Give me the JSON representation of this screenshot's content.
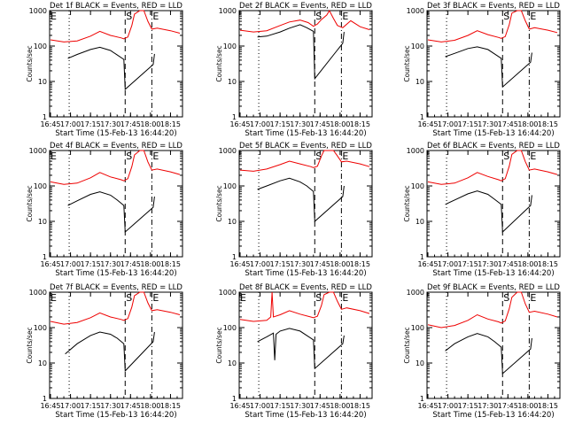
{
  "chart_data": [
    {
      "type": "line",
      "title": "Det 1f BLACK = Events, RED = LLD",
      "xlabel": "Start Time (15-Feb-13 16:44:20)",
      "ylabel": "Counts/sec",
      "y_scale": "log",
      "ylim": [
        1,
        1000
      ],
      "xlim": [
        "16:44:20",
        "18:24"
      ],
      "x_ticks": [
        "16:45",
        "17:00",
        "17:15",
        "17:30",
        "17:45",
        "18:00",
        "18:15"
      ],
      "y_ticks": [
        "1",
        "10",
        "100",
        "1000"
      ],
      "markers": [
        {
          "label": "",
          "time": "16:59",
          "style": "dotted"
        },
        {
          "label": "S",
          "time": "17:41",
          "style": "dashed"
        },
        {
          "label": "E",
          "time": "18:01",
          "style": "dash-dot"
        }
      ],
      "corner_label": "E",
      "series": [
        {
          "color": "#000000",
          "x": [
            "16:58",
            "17:05",
            "17:15",
            "17:22",
            "17:30",
            "17:35",
            "17:40",
            "17:41",
            "18:02",
            "18:03"
          ],
          "values": [
            45,
            58,
            80,
            92,
            75,
            56,
            42,
            6,
            30,
            60
          ]
        },
        {
          "color": "#ee0000",
          "x": [
            "16:45",
            "16:55",
            "17:05",
            "17:15",
            "17:22",
            "17:30",
            "17:38",
            "17:40",
            "17:43",
            "17:46",
            "17:48",
            "17:52",
            "17:55",
            "17:58",
            "18:01",
            "18:05",
            "18:15",
            "18:22"
          ],
          "values": [
            150,
            130,
            140,
            190,
            260,
            200,
            170,
            160,
            180,
            380,
            800,
            1000,
            1000,
            500,
            300,
            320,
            270,
            230
          ]
        }
      ]
    },
    {
      "type": "line",
      "title": "Det 2f BLACK = Events, RED = LLD",
      "xlabel": "Start Time (15-Feb-13 16:44:20)",
      "ylabel": "Counts/sec",
      "y_scale": "log",
      "ylim": [
        1,
        1000
      ],
      "xlim": [
        "16:44:20",
        "18:24"
      ],
      "x_ticks": [
        "16:45",
        "17:00",
        "17:15",
        "17:30",
        "17:45",
        "18:00",
        "18:15"
      ],
      "y_ticks": [
        "1",
        "10",
        "100",
        "1000"
      ],
      "markers": [
        {
          "label": "",
          "time": "16:59",
          "style": "dotted"
        },
        {
          "label": "S",
          "time": "17:41",
          "style": "dashed"
        },
        {
          "label": "E",
          "time": "18:01",
          "style": "dash-dot"
        }
      ],
      "corner_label": "",
      "series": [
        {
          "color": "#000000",
          "x": [
            "16:58",
            "17:05",
            "17:15",
            "17:22",
            "17:30",
            "17:35",
            "17:40",
            "17:41",
            "18:02",
            "18:03"
          ],
          "values": [
            180,
            190,
            250,
            320,
            400,
            330,
            260,
            12,
            120,
            250
          ]
        },
        {
          "color": "#ee0000",
          "x": [
            "16:45",
            "16:55",
            "17:05",
            "17:15",
            "17:22",
            "17:30",
            "17:36",
            "17:40",
            "17:43",
            "17:46",
            "17:50",
            "17:52",
            "17:55",
            "17:58",
            "18:02",
            "18:08",
            "18:15",
            "18:22"
          ],
          "values": [
            280,
            250,
            270,
            380,
            480,
            540,
            460,
            360,
            420,
            560,
            750,
            1000,
            600,
            380,
            330,
            520,
            350,
            290
          ]
        }
      ]
    },
    {
      "type": "line",
      "title": "Det 3f BLACK = Events, RED = LLD",
      "xlabel": "Start Time (15-Feb-13 16:44:20)",
      "ylabel": "Counts/sec",
      "y_scale": "log",
      "ylim": [
        1,
        1000
      ],
      "xlim": [
        "16:44:20",
        "18:24"
      ],
      "x_ticks": [
        "16:45",
        "17:00",
        "17:15",
        "17:30",
        "17:45",
        "18:00",
        "18:15"
      ],
      "y_ticks": [
        "1",
        "10",
        "100",
        "1000"
      ],
      "markers": [
        {
          "label": "",
          "time": "16:59",
          "style": "dotted"
        },
        {
          "label": "S",
          "time": "17:41",
          "style": "dashed"
        },
        {
          "label": "E",
          "time": "18:01",
          "style": "dash-dot"
        }
      ],
      "corner_label": "",
      "series": [
        {
          "color": "#000000",
          "x": [
            "16:58",
            "17:05",
            "17:15",
            "17:22",
            "17:30",
            "17:35",
            "17:40",
            "17:41",
            "18:02",
            "18:03"
          ],
          "values": [
            50,
            62,
            85,
            95,
            80,
            60,
            45,
            7,
            35,
            65
          ]
        },
        {
          "color": "#ee0000",
          "x": [
            "16:45",
            "16:55",
            "17:05",
            "17:15",
            "17:22",
            "17:30",
            "17:38",
            "17:40",
            "17:43",
            "17:46",
            "17:48",
            "17:52",
            "17:55",
            "17:58",
            "18:01",
            "18:05",
            "18:15",
            "18:22"
          ],
          "values": [
            150,
            130,
            145,
            200,
            270,
            210,
            175,
            165,
            185,
            400,
            850,
            1000,
            1000,
            520,
            300,
            330,
            280,
            240
          ]
        }
      ]
    },
    {
      "type": "line",
      "title": "Det 4f BLACK = Events, RED = LLD",
      "xlabel": "Start Time (15-Feb-13 16:44:20)",
      "ylabel": "Counts/sec",
      "y_scale": "log",
      "ylim": [
        1,
        1000
      ],
      "xlim": [
        "16:44:20",
        "18:24"
      ],
      "x_ticks": [
        "16:45",
        "17:00",
        "17:15",
        "17:30",
        "17:45",
        "18:00",
        "18:15"
      ],
      "y_ticks": [
        "1",
        "10",
        "100",
        "1000"
      ],
      "markers": [
        {
          "label": "",
          "time": "16:59",
          "style": "dotted"
        },
        {
          "label": "S",
          "time": "17:41",
          "style": "dashed"
        },
        {
          "label": "E",
          "time": "18:01",
          "style": "dash-dot"
        }
      ],
      "corner_label": "E",
      "series": [
        {
          "color": "#000000",
          "x": [
            "16:58",
            "17:05",
            "17:15",
            "17:22",
            "17:30",
            "17:35",
            "17:40",
            "17:41",
            "18:02",
            "18:03"
          ],
          "values": [
            28,
            38,
            58,
            68,
            55,
            40,
            28,
            5,
            25,
            50
          ]
        },
        {
          "color": "#ee0000",
          "x": [
            "16:45",
            "16:55",
            "17:05",
            "17:15",
            "17:22",
            "17:30",
            "17:38",
            "17:40",
            "17:43",
            "17:46",
            "17:48",
            "17:52",
            "17:55",
            "17:58",
            "18:01",
            "18:05",
            "18:15",
            "18:22"
          ],
          "values": [
            130,
            110,
            120,
            170,
            240,
            180,
            150,
            140,
            160,
            350,
            750,
            1000,
            1000,
            480,
            280,
            300,
            250,
            210
          ]
        }
      ]
    },
    {
      "type": "line",
      "title": "Det 5f BLACK = Events, RED = LLD",
      "xlabel": "Start Time (15-Feb-13 16:44:20)",
      "ylabel": "Counts/sec",
      "y_scale": "log",
      "ylim": [
        1,
        1000
      ],
      "xlim": [
        "16:44:20",
        "18:24"
      ],
      "x_ticks": [
        "16:45",
        "17:00",
        "17:15",
        "17:30",
        "17:45",
        "18:00",
        "18:15"
      ],
      "y_ticks": [
        "1",
        "10",
        "100",
        "1000"
      ],
      "markers": [
        {
          "label": "",
          "time": "16:59",
          "style": "dotted"
        },
        {
          "label": "S",
          "time": "17:41",
          "style": "dashed"
        },
        {
          "label": "E",
          "time": "18:01",
          "style": "dash-dot"
        }
      ],
      "corner_label": "",
      "series": [
        {
          "color": "#000000",
          "x": [
            "16:58",
            "17:05",
            "17:15",
            "17:22",
            "17:30",
            "17:35",
            "17:40",
            "17:41",
            "18:02",
            "18:03"
          ],
          "values": [
            80,
            100,
            140,
            165,
            130,
            100,
            70,
            10,
            50,
            100
          ]
        },
        {
          "color": "#ee0000",
          "x": [
            "16:45",
            "16:55",
            "17:05",
            "17:15",
            "17:22",
            "17:30",
            "17:38",
            "17:40",
            "17:43",
            "17:46",
            "17:48",
            "17:52",
            "17:55",
            "17:58",
            "18:01",
            "18:05",
            "18:15",
            "18:22"
          ],
          "values": [
            280,
            260,
            300,
            400,
            500,
            420,
            350,
            330,
            360,
            700,
            1000,
            1000,
            1000,
            700,
            480,
            500,
            420,
            350
          ]
        }
      ]
    },
    {
      "type": "line",
      "title": "Det 6f BLACK = Events, RED = LLD",
      "xlabel": "Start Time (15-Feb-13 16:44:20)",
      "ylabel": "Counts/sec",
      "y_scale": "log",
      "ylim": [
        1,
        1000
      ],
      "xlim": [
        "16:44:20",
        "18:24"
      ],
      "x_ticks": [
        "16:45",
        "17:00",
        "17:15",
        "17:30",
        "17:45",
        "18:00",
        "18:15"
      ],
      "y_ticks": [
        "1",
        "10",
        "100",
        "1000"
      ],
      "markers": [
        {
          "label": "",
          "time": "16:59",
          "style": "dotted"
        },
        {
          "label": "S",
          "time": "17:41",
          "style": "dashed"
        },
        {
          "label": "E",
          "time": "18:01",
          "style": "dash-dot"
        }
      ],
      "corner_label": "",
      "series": [
        {
          "color": "#000000",
          "x": [
            "16:58",
            "17:05",
            "17:15",
            "17:22",
            "17:30",
            "17:35",
            "17:40",
            "17:41",
            "18:02",
            "18:03"
          ],
          "values": [
            30,
            40,
            60,
            72,
            58,
            42,
            30,
            5,
            28,
            55
          ]
        },
        {
          "color": "#ee0000",
          "x": [
            "16:45",
            "16:55",
            "17:05",
            "17:15",
            "17:22",
            "17:30",
            "17:38",
            "17:40",
            "17:43",
            "17:46",
            "17:48",
            "17:52",
            "17:55",
            "17:58",
            "18:01",
            "18:05",
            "18:15",
            "18:22"
          ],
          "values": [
            130,
            110,
            120,
            170,
            240,
            185,
            150,
            140,
            160,
            360,
            780,
            1000,
            1000,
            490,
            280,
            300,
            250,
            210
          ]
        }
      ]
    },
    {
      "type": "line",
      "title": "Det 7f BLACK = Events, RED = LLD",
      "xlabel": "Start Time (15-Feb-13 16:44:20)",
      "ylabel": "Counts/sec",
      "y_scale": "log",
      "ylim": [
        1,
        1000
      ],
      "xlim": [
        "16:44:20",
        "18:24"
      ],
      "x_ticks": [
        "16:45",
        "17:00",
        "17:15",
        "17:30",
        "17:45",
        "18:00",
        "18:15"
      ],
      "y_ticks": [
        "1",
        "10",
        "100",
        "1000"
      ],
      "markers": [
        {
          "label": "",
          "time": "16:59",
          "style": "dotted"
        },
        {
          "label": "S",
          "time": "17:41",
          "style": "dashed"
        },
        {
          "label": "E",
          "time": "18:01",
          "style": "dash-dot"
        }
      ],
      "corner_label": "E",
      "series": [
        {
          "color": "#000000",
          "x": [
            "16:56",
            "17:05",
            "17:15",
            "17:22",
            "17:30",
            "17:35",
            "17:40",
            "17:41",
            "18:02",
            "18:03"
          ],
          "values": [
            18,
            35,
            60,
            75,
            65,
            50,
            35,
            6,
            40,
            75
          ]
        },
        {
          "color": "#ee0000",
          "x": [
            "16:45",
            "16:55",
            "17:05",
            "17:15",
            "17:22",
            "17:30",
            "17:38",
            "17:40",
            "17:43",
            "17:46",
            "17:48",
            "17:52",
            "17:55",
            "17:58",
            "18:01",
            "18:05",
            "18:15",
            "18:22"
          ],
          "values": [
            150,
            125,
            140,
            190,
            260,
            200,
            170,
            160,
            180,
            380,
            800,
            1000,
            1000,
            500,
            300,
            320,
            270,
            230
          ]
        }
      ]
    },
    {
      "type": "line",
      "title": "Det 8f BLACK = Events, RED = LLD",
      "xlabel": "Start Time (15-Feb-13 16:44:20)",
      "ylabel": "Counts/sec",
      "y_scale": "log",
      "ylim": [
        1,
        1000
      ],
      "xlim": [
        "16:44:20",
        "18:24"
      ],
      "x_ticks": [
        "16:45",
        "17:00",
        "17:15",
        "17:30",
        "17:45",
        "18:00",
        "18:15"
      ],
      "y_ticks": [
        "1",
        "10",
        "100",
        "1000"
      ],
      "markers": [
        {
          "label": "",
          "time": "16:59",
          "style": "dotted"
        },
        {
          "label": "S",
          "time": "17:41",
          "style": "dashed"
        },
        {
          "label": "E",
          "time": "18:01",
          "style": "dash-dot"
        }
      ],
      "corner_label": "E",
      "series": [
        {
          "color": "#000000",
          "x": [
            "16:58",
            "17:05",
            "17:10",
            "17:11",
            "17:12",
            "17:15",
            "17:22",
            "17:30",
            "17:35",
            "17:40",
            "17:41",
            "18:02",
            "18:03"
          ],
          "values": [
            40,
            55,
            70,
            12,
            65,
            80,
            95,
            80,
            60,
            45,
            7,
            35,
            60
          ]
        },
        {
          "color": "#ee0000",
          "x": [
            "16:45",
            "16:55",
            "17:05",
            "17:08",
            "17:09",
            "17:10",
            "17:15",
            "17:22",
            "17:30",
            "17:38",
            "17:40",
            "17:43",
            "17:46",
            "17:48",
            "17:52",
            "17:55",
            "17:58",
            "18:01",
            "18:05",
            "18:15",
            "18:22"
          ],
          "values": [
            170,
            150,
            160,
            200,
            1000,
            200,
            230,
            300,
            240,
            200,
            190,
            210,
            420,
            850,
            1000,
            1000,
            550,
            330,
            360,
            300,
            250
          ]
        }
      ]
    },
    {
      "type": "line",
      "title": "Det 9f BLACK = Events, RED = LLD",
      "xlabel": "Start Time (15-Feb-13 16:44:20)",
      "ylabel": "Counts/sec",
      "y_scale": "log",
      "ylim": [
        1,
        1000
      ],
      "xlim": [
        "16:44:20",
        "18:24"
      ],
      "x_ticks": [
        "16:45",
        "17:00",
        "17:15",
        "17:30",
        "17:45",
        "18:00",
        "18:15"
      ],
      "y_ticks": [
        "1",
        "10",
        "100",
        "1000"
      ],
      "markers": [
        {
          "label": "",
          "time": "16:59",
          "style": "dotted"
        },
        {
          "label": "S",
          "time": "17:41",
          "style": "dashed"
        },
        {
          "label": "E",
          "time": "18:01",
          "style": "dash-dot"
        }
      ],
      "corner_label": "",
      "series": [
        {
          "color": "#000000",
          "x": [
            "16:58",
            "17:05",
            "17:15",
            "17:22",
            "17:30",
            "17:35",
            "17:40",
            "17:41",
            "18:02",
            "18:03"
          ],
          "values": [
            22,
            35,
            55,
            68,
            55,
            40,
            28,
            5,
            25,
            50
          ]
        },
        {
          "color": "#ee0000",
          "x": [
            "16:45",
            "16:55",
            "17:05",
            "17:15",
            "17:22",
            "17:30",
            "17:38",
            "17:40",
            "17:43",
            "17:46",
            "17:48",
            "17:52",
            "17:55",
            "17:58",
            "18:01",
            "18:05",
            "18:15",
            "18:22"
          ],
          "values": [
            120,
            100,
            115,
            160,
            230,
            175,
            145,
            135,
            155,
            340,
            720,
            1000,
            1000,
            470,
            270,
            290,
            240,
            200
          ]
        }
      ]
    }
  ]
}
